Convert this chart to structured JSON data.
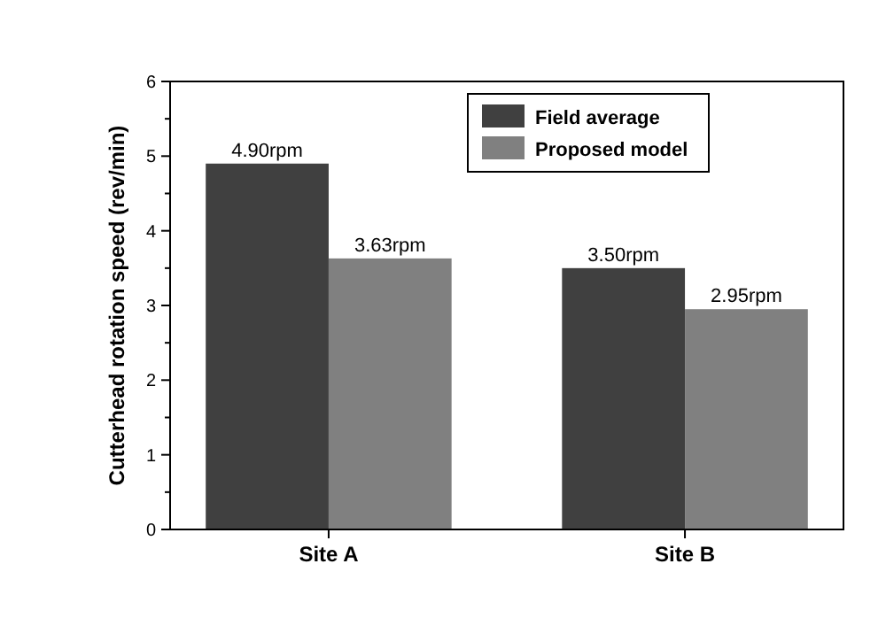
{
  "chart_data": {
    "type": "bar",
    "ylabel": "Cutterhead rotation speed (rev/min)",
    "categories": [
      "Site A",
      "Site B"
    ],
    "series": [
      {
        "name": "Field average",
        "color": "#404040",
        "values": [
          4.9,
          3.5
        ],
        "value_labels": [
          "4.90rpm",
          "3.50rpm"
        ]
      },
      {
        "name": "Proposed model",
        "color": "#808080",
        "values": [
          3.63,
          2.95
        ],
        "value_labels": [
          "3.63rpm",
          "2.95rpm"
        ]
      }
    ],
    "ylim": [
      0,
      6
    ],
    "yticks": [
      0,
      {
        "value": 0.5,
        "label": null
      },
      1,
      {
        "value": 1.5,
        "label": null
      },
      2,
      {
        "value": 2.5,
        "label": null
      },
      3,
      {
        "value": 3.5,
        "label": null
      },
      4,
      {
        "value": 4.5,
        "label": null
      },
      5,
      {
        "value": 5.5,
        "label": null
      },
      6
    ],
    "legend": "top right"
  }
}
